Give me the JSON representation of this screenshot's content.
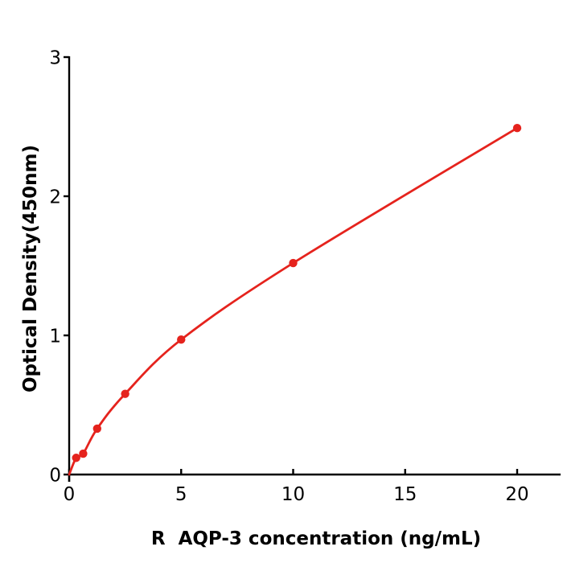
{
  "figure": {
    "background": "#ffffff",
    "kind": "ELISA standard curve plot"
  },
  "chart_data": {
    "type": "scatter",
    "title": "",
    "xlabel": "R  AQP-3 concentration (ng/mL)",
    "ylabel": "Optical Density(450nm)",
    "x": [
      0.3125,
      0.625,
      1.25,
      2.5,
      5,
      10,
      20
    ],
    "y": [
      0.12,
      0.15,
      0.33,
      0.58,
      0.97,
      1.52,
      2.49
    ],
    "curve": {
      "style": "smooth-fit-line",
      "start_x": 0,
      "start_y": 0
    },
    "xticks": [
      0,
      5,
      10,
      15,
      20
    ],
    "yticks": [
      0,
      1,
      2,
      3
    ],
    "xlim": [
      0,
      21.95
    ],
    "ylim": [
      0,
      3
    ],
    "grid": false,
    "legend": null,
    "colors": {
      "curve": "#e5231d",
      "marker": "#e5231d",
      "axis": "#000000",
      "text": "#000000"
    }
  }
}
